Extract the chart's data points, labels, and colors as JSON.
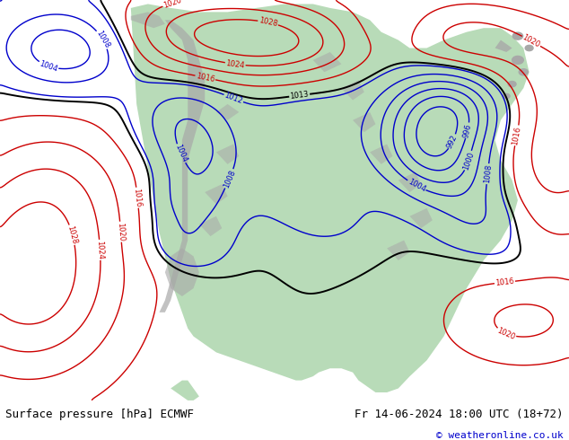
{
  "title_left": "Surface pressure [hPa] ECMWF",
  "title_right": "Fr 14-06-2024 18:00 UTC (18+72)",
  "copyright": "© weatheronline.co.uk",
  "figsize": [
    6.34,
    4.9
  ],
  "dpi": 100,
  "ocean_color": "#e8e8ee",
  "land_color": "#b8dbb8",
  "mountain_color": "#a8a8a8",
  "footer_bg": "#ffffff",
  "copyright_color": "#0000cc",
  "title_fontsize": 9,
  "isobar_blue_color": "#0000cc",
  "isobar_red_color": "#cc0000",
  "isobar_black_color": "#000000",
  "isobar_linewidth": 1.0,
  "label_fontsize": 6
}
